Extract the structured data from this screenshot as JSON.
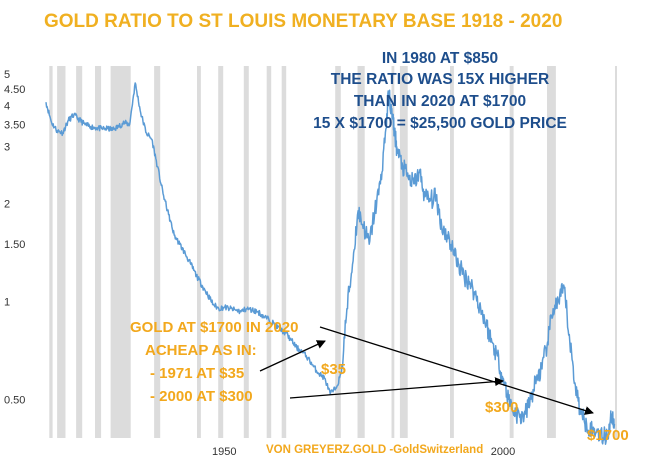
{
  "chart_data": {
    "type": "line",
    "title": "GOLD RATIO TO ST LOUIS MONETARY BASE 1918 - 2020",
    "y_scale": "log",
    "ylim": [
      0.38,
      5.3
    ],
    "xlim": [
      1918,
      2021
    ],
    "y_ticks": [
      {
        "value": 5,
        "label": "5"
      },
      {
        "value": 4.5,
        "label": "4.50"
      },
      {
        "value": 4,
        "label": "4"
      },
      {
        "value": 3.5,
        "label": "3.50"
      },
      {
        "value": 3,
        "label": "3"
      },
      {
        "value": 2,
        "label": "2"
      },
      {
        "value": 1.5,
        "label": "1.50"
      },
      {
        "value": 1,
        "label": "1"
      },
      {
        "value": 0.5,
        "label": "0.50"
      }
    ],
    "x_ticks": [
      {
        "value": 1950,
        "label": "1950"
      },
      {
        "value": 2000,
        "label": "2000"
      }
    ],
    "recessions": [
      [
        1918.6,
        1919.2
      ],
      [
        1920.0,
        1921.5
      ],
      [
        1923.4,
        1924.5
      ],
      [
        1926.8,
        1927.9
      ],
      [
        1929.6,
        1933.2
      ],
      [
        1937.4,
        1938.5
      ],
      [
        1945.1,
        1945.8
      ],
      [
        1948.9,
        1949.8
      ],
      [
        1953.5,
        1954.4
      ],
      [
        1957.6,
        1958.4
      ],
      [
        1960.3,
        1961.1
      ],
      [
        1969.9,
        1970.9
      ],
      [
        1973.9,
        1975.2
      ],
      [
        1980.0,
        1980.5
      ],
      [
        1981.5,
        1982.9
      ],
      [
        1990.5,
        1991.2
      ],
      [
        2001.2,
        2001.9
      ],
      [
        2007.9,
        2009.5
      ],
      [
        2020.1,
        2020.4
      ]
    ],
    "series": [
      {
        "color": "#5b9bd5",
        "x": [
          1918,
          1919,
          1920,
          1921,
          1922,
          1923,
          1924,
          1925,
          1926,
          1927,
          1928,
          1929,
          1930,
          1931,
          1932,
          1933,
          1934,
          1935,
          1936,
          1937,
          1938,
          1939,
          1940,
          1941,
          1942,
          1943,
          1944,
          1945,
          1946,
          1947,
          1948,
          1949,
          1950,
          1951,
          1952,
          1953,
          1954,
          1955,
          1956,
          1957,
          1958,
          1959,
          1960,
          1961,
          1962,
          1963,
          1964,
          1965,
          1966,
          1967,
          1968,
          1969,
          1970,
          1971,
          1972,
          1973,
          1974,
          1975,
          1976,
          1977,
          1978,
          1979,
          1979.5,
          1980,
          1980.5,
          1981,
          1982,
          1983,
          1984,
          1985,
          1986,
          1987,
          1988,
          1989,
          1990,
          1991,
          1992,
          1993,
          1994,
          1995,
          1996,
          1997,
          1998,
          1999,
          2000,
          2001,
          2002,
          2003,
          2004,
          2005,
          2006,
          2007,
          2008,
          2009,
          2010,
          2011,
          2012,
          2013,
          2014,
          2015,
          2016,
          2017,
          2018,
          2019,
          2019.5,
          2020
        ],
        "y": [
          4.1,
          3.55,
          3.35,
          3.3,
          3.6,
          3.75,
          3.62,
          3.5,
          3.45,
          3.42,
          3.4,
          3.4,
          3.38,
          3.45,
          3.55,
          3.5,
          4.7,
          3.8,
          3.3,
          3.15,
          2.6,
          2.15,
          1.85,
          1.6,
          1.5,
          1.4,
          1.3,
          1.2,
          1.12,
          1.05,
          0.98,
          0.95,
          0.96,
          0.95,
          0.94,
          0.93,
          0.95,
          0.94,
          0.93,
          0.9,
          0.88,
          0.85,
          0.82,
          0.8,
          0.76,
          0.72,
          0.7,
          0.67,
          0.63,
          0.6,
          0.58,
          0.52,
          0.54,
          0.6,
          0.95,
          1.3,
          1.9,
          1.7,
          1.5,
          1.9,
          2.3,
          3.4,
          4.4,
          3.8,
          3.4,
          2.9,
          2.6,
          2.4,
          2.3,
          2.5,
          2.1,
          2.05,
          2.1,
          1.7,
          1.6,
          1.45,
          1.3,
          1.2,
          1.15,
          1.05,
          0.95,
          0.85,
          0.75,
          0.68,
          0.58,
          0.5,
          0.46,
          0.44,
          0.45,
          0.5,
          0.58,
          0.62,
          0.75,
          0.95,
          1.0,
          1.1,
          0.75,
          0.55,
          0.45,
          0.42,
          0.4,
          0.4,
          0.38,
          0.4,
          0.45,
          0.42
        ]
      }
    ],
    "annotations": {
      "note_1980": [
        "IN 1980 AT $850",
        "THE RATIO WAS 15X HIGHER",
        "THAN IN 2020 AT $1700",
        "15 X $1700 = $25,500 GOLD PRICE"
      ],
      "note_gold": [
        "GOLD AT $1700 IN 2020",
        "ACHEAP AS IN:",
        "- 1971 AT $35",
        "- 2000 AT $300"
      ],
      "label_35": "$35",
      "label_300": "$300",
      "label_1700": "$1700",
      "credit": "VON GREYERZ.GOLD -GoldSwitzerland"
    }
  }
}
